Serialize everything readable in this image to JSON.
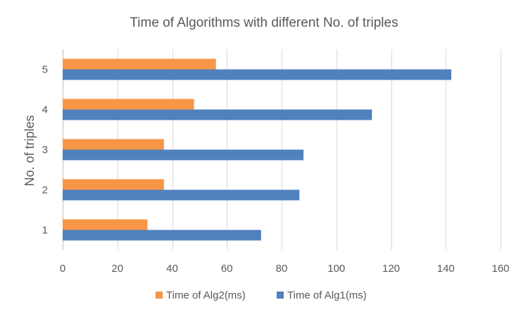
{
  "chart_data": {
    "type": "bar",
    "orientation": "horizontal",
    "title": "Time of Algorithms with different No. of triples",
    "xlabel": "",
    "ylabel": "No. of triples",
    "categories": [
      "1",
      "2",
      "3",
      "4",
      "5"
    ],
    "xlim": [
      0,
      160
    ],
    "xticks": [
      0,
      20,
      40,
      60,
      80,
      100,
      120,
      140,
      160
    ],
    "grid": true,
    "legend_position": "bottom",
    "series": [
      {
        "name": "Time of Alg2(ms)",
        "color": "#f79646",
        "values": [
          31,
          37,
          37,
          48,
          56
        ]
      },
      {
        "name": "Time of Alg1(ms)",
        "color": "#4f81bd",
        "values": [
          72.5,
          86.5,
          88,
          113,
          142
        ]
      }
    ]
  }
}
